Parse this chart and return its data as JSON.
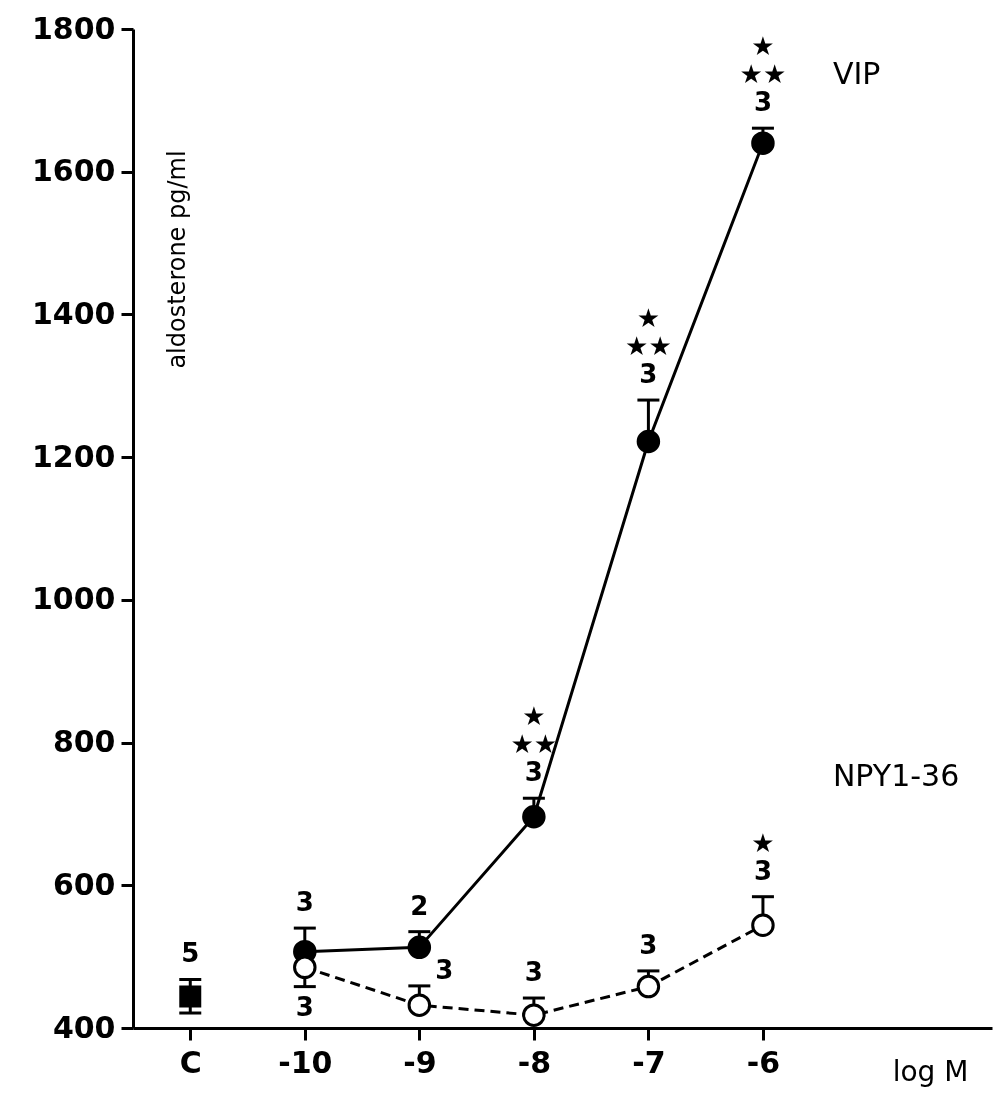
{
  "chart_data": {
    "type": "line",
    "xlabel": "log M",
    "ylabel": "aldosterone pg/ml",
    "xlim": [
      -11.5,
      -4
    ],
    "xticks": [
      {
        "value": -11,
        "label": "C"
      },
      -10,
      -9,
      -8,
      -7,
      -6
    ],
    "ylim": [
      400,
      1800
    ],
    "yticks": [
      400,
      600,
      800,
      1000,
      1200,
      1400,
      1600,
      1800
    ],
    "x": [
      -10,
      -9,
      -8,
      -7,
      -6
    ],
    "series": [
      {
        "name": "VIP",
        "color": "#000000",
        "marker": "circle",
        "line_style": "solid",
        "values": [
          507,
          513,
          696,
          1222,
          1640
        ],
        "errors": [
          [
            507,
            540
          ],
          [
            513,
            535
          ],
          [
            696,
            722
          ],
          [
            1222,
            1280
          ],
          [
            1640,
            1661
          ]
        ]
      },
      {
        "name": "NPY1-36",
        "color": "#000000",
        "marker": "circle",
        "line_style": "dashed",
        "values": [
          485,
          432,
          418,
          458,
          544
        ],
        "errors": [
          [
            458,
            485
          ],
          [
            432,
            459
          ],
          [
            418,
            442
          ],
          [
            458,
            480
          ],
          [
            544,
            584
          ]
        ]
      },
      {
        "type": "scatter",
        "x": [
          -11
        ],
        "color": "#000000",
        "marker": "square",
        "values": [
          444
        ],
        "errors": [
          [
            421,
            468
          ]
        ]
      }
    ],
    "annotations": [
      {
        "text": "5",
        "x": -11,
        "y": 468
      },
      {
        "text": "3",
        "x": -10,
        "y": 540
      },
      {
        "text": "3",
        "x": -10,
        "y": 458
      },
      {
        "text": "2",
        "x": -9,
        "y": 535
      },
      {
        "text": "3",
        "x": -9,
        "y": 459
      },
      {
        "text": "★\n★★\n3",
        "x": -8,
        "y": 722
      },
      {
        "text": "3",
        "x": -8,
        "y": 442
      },
      {
        "text": "★\n★★\n3",
        "x": -7,
        "y": 1280
      },
      {
        "text": "3",
        "x": -7,
        "y": 480
      },
      {
        "text": "★\n★★\n3",
        "x": -6,
        "y": 1661
      },
      {
        "text": "★\n3",
        "x": -6,
        "y": 584
      }
    ]
  }
}
